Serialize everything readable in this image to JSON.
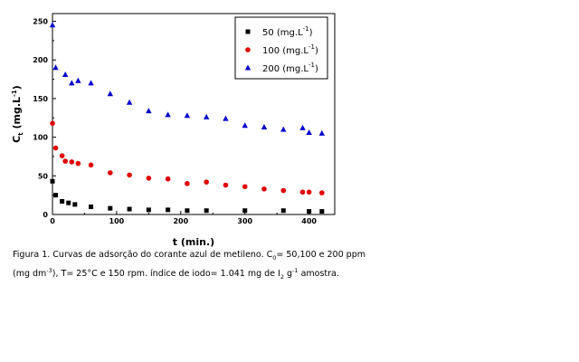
{
  "chart_data": {
    "type": "scatter",
    "xlabel": "t (min.)",
    "ylabel": "C",
    "ylabel_sub": "t",
    "ylabel_unit": "(mg.L",
    "ylabel_sup": "-1",
    "ylabel_close": ")",
    "xlim": [
      0,
      440
    ],
    "ylim": [
      0,
      260
    ],
    "xticks": [
      0,
      100,
      200,
      300,
      400
    ],
    "yticks": [
      0,
      50,
      100,
      150,
      200,
      250
    ],
    "legend_position": "top-right",
    "series": [
      {
        "name": "50",
        "unit_prefix": "(mg.L",
        "unit_sup": "-1",
        "unit_suffix": ")",
        "marker": "square",
        "color": "#000000",
        "x": [
          0,
          5,
          15,
          25,
          35,
          60,
          90,
          120,
          150,
          180,
          210,
          240,
          300,
          360,
          400,
          420
        ],
        "y": [
          43,
          25,
          17,
          15,
          13,
          10,
          8,
          7,
          6,
          6,
          5,
          5,
          5,
          5,
          4,
          4
        ]
      },
      {
        "name": "100",
        "unit_prefix": "(mg.L",
        "unit_sup": "-1",
        "unit_suffix": ")",
        "marker": "circle",
        "color": "#e00000",
        "x": [
          0,
          5,
          15,
          20,
          30,
          40,
          60,
          90,
          120,
          150,
          180,
          210,
          240,
          270,
          300,
          330,
          360,
          390,
          400,
          420
        ],
        "y": [
          118,
          86,
          76,
          69,
          68,
          66,
          64,
          54,
          51,
          47,
          46,
          40,
          42,
          38,
          36,
          33,
          31,
          29,
          29,
          28
        ]
      },
      {
        "name": "200",
        "unit_prefix": "(mg.L",
        "unit_sup": "-1",
        "unit_suffix": ")",
        "marker": "triangle",
        "color": "#0000cc",
        "x": [
          0,
          5,
          20,
          30,
          40,
          60,
          90,
          120,
          150,
          180,
          210,
          240,
          270,
          300,
          330,
          360,
          390,
          400,
          420
        ],
        "y": [
          245,
          190,
          181,
          170,
          173,
          170,
          156,
          145,
          134,
          129,
          128,
          126,
          124,
          115,
          113,
          110,
          112,
          106,
          105
        ]
      }
    ]
  },
  "caption": {
    "line1_a": "Figura 1. Curvas de adsorção do corante azul de metileno. C",
    "line1_sub": "0",
    "line1_b": "= 50,100 e 200 ppm",
    "line2_a": "(mg dm",
    "line2_sup": "-3",
    "line2_b": "), T= 25°C e 150 rpm. índice de iodo= 1.041 mg de  I",
    "line2_sub": "2",
    "line2_c": " g",
    "line2_sup2": "-1",
    "line2_d": " amostra."
  }
}
